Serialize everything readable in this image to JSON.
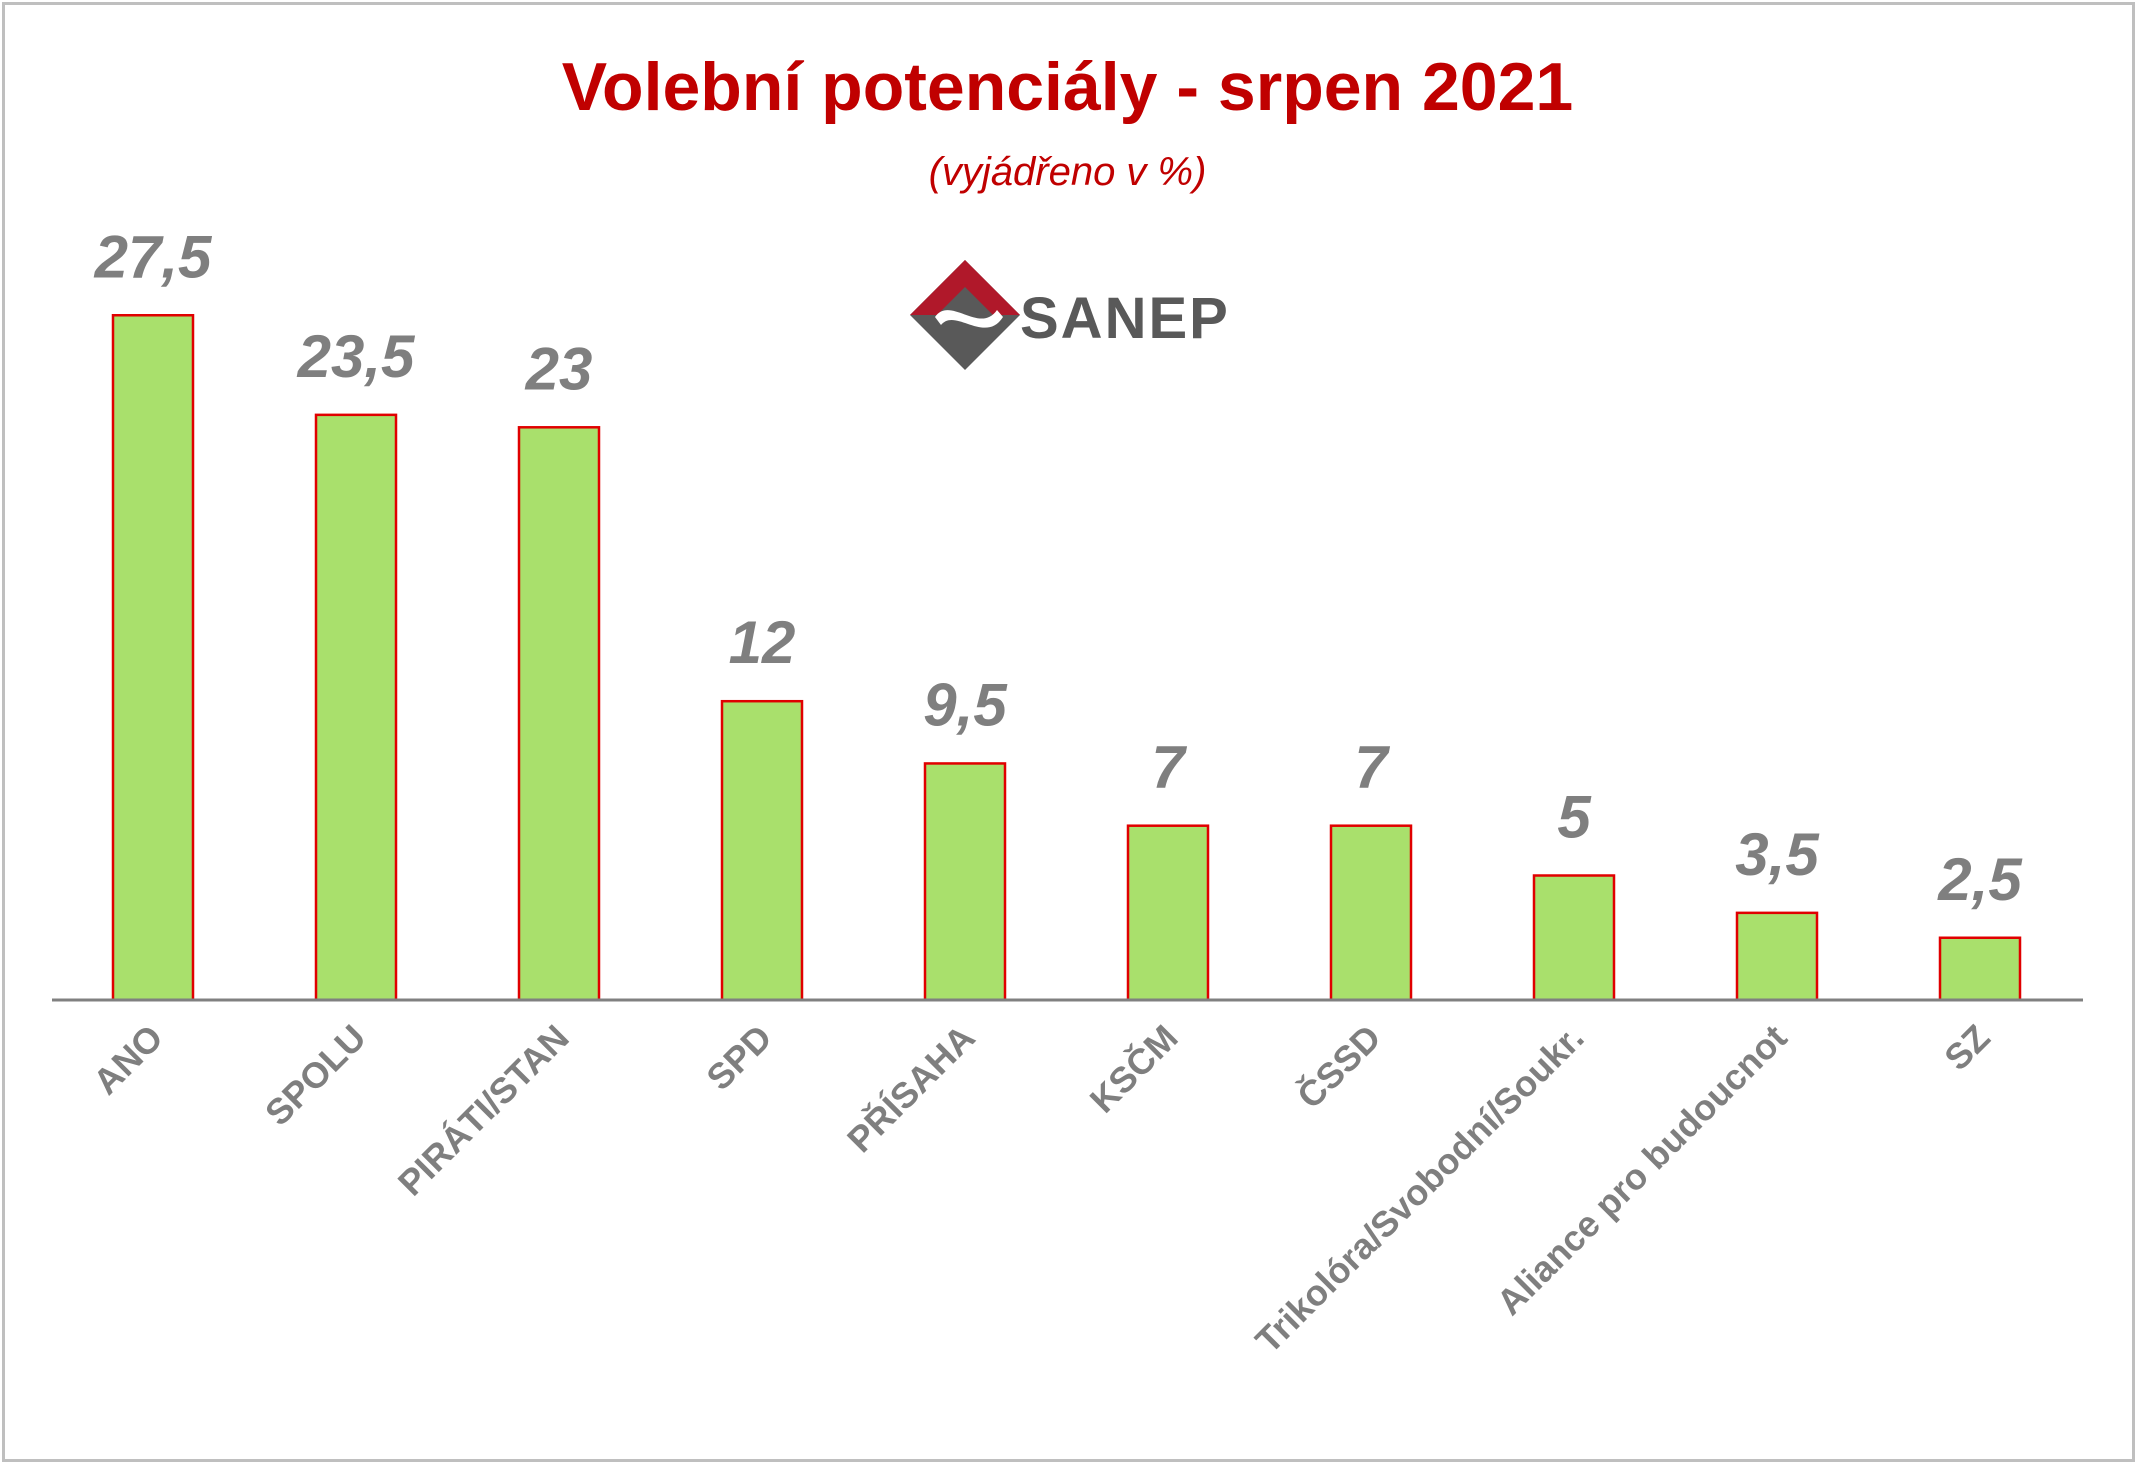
{
  "chart_data": {
    "type": "bar",
    "title": "Volební potenciály - srpen 2021",
    "subtitle": "(vyjádřeno v %)",
    "categories": [
      "ANO",
      "SPOLU",
      "PIRÁTI/STAN",
      "SPD",
      "PŘÍSAHA",
      "KSČM",
      "ČSSD",
      "Trikolóra/Svobodní/Soukr.",
      "Aliance pro budoucnot",
      "SZ"
    ],
    "values": [
      27.5,
      23.5,
      23,
      12,
      9.5,
      7,
      7,
      5,
      3.5,
      2.5
    ],
    "value_labels": [
      "27,5",
      "23,5",
      "23",
      "12",
      "9,5",
      "7",
      "7",
      "5",
      "3,5",
      "2,5"
    ],
    "ylim": [
      0,
      30
    ],
    "grid": false,
    "legend": "none",
    "colors": {
      "bar_fill": "#a9e06c",
      "bar_stroke": "#e00000",
      "title": "#c00000",
      "labels": "#7f7f7f",
      "axis": "#808080"
    }
  },
  "logo": {
    "text": "SANEP",
    "icon": "sanep-logo-icon"
  }
}
